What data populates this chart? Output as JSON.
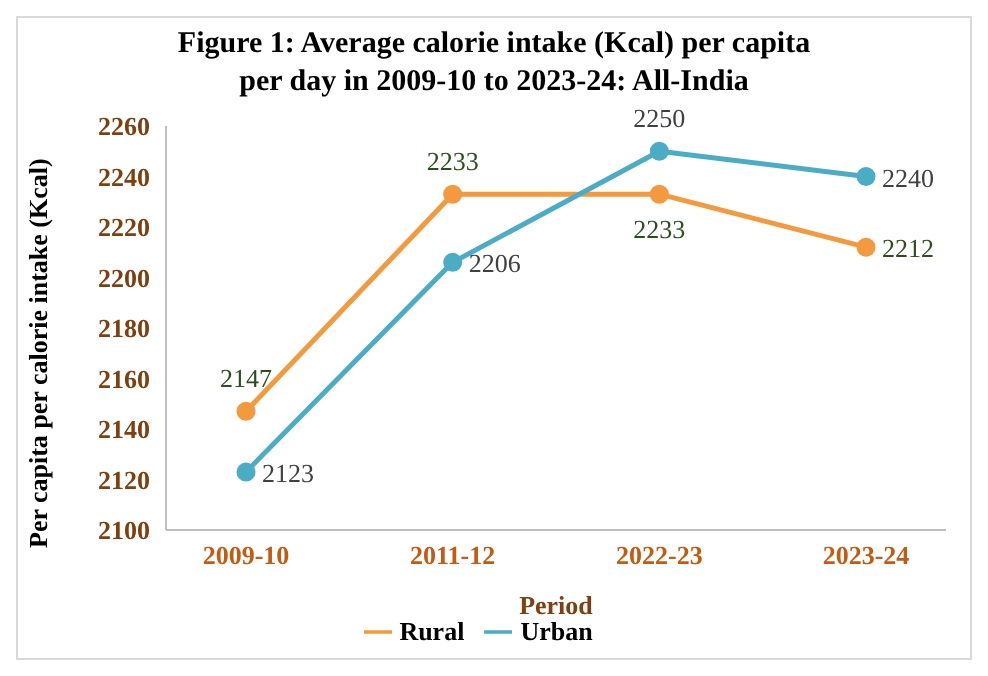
{
  "chart_data": {
    "type": "line",
    "title": "Figure 1: Average calorie intake (Kcal) per capita per day in 2009-10 to 2023-24: All-India",
    "xlabel": "Period",
    "ylabel": "Per capita per calorie intake (Kcal)",
    "categories": [
      "2009-10",
      "2011-12",
      "2022-23",
      "2023-24"
    ],
    "series": [
      {
        "name": "Rural",
        "color": "#f39a3e",
        "values": [
          2147,
          2233,
          2233,
          2212
        ]
      },
      {
        "name": "Urban",
        "color": "#4bacc6",
        "values": [
          2123,
          2206,
          2250,
          2240
        ]
      }
    ],
    "ylim": [
      2100,
      2260
    ],
    "yticks": [
      2100,
      2120,
      2140,
      2160,
      2180,
      2200,
      2220,
      2240,
      2260
    ],
    "grid": false,
    "legend": "bottom",
    "marker": "circle",
    "line_style": "solid",
    "data_labels": true
  }
}
